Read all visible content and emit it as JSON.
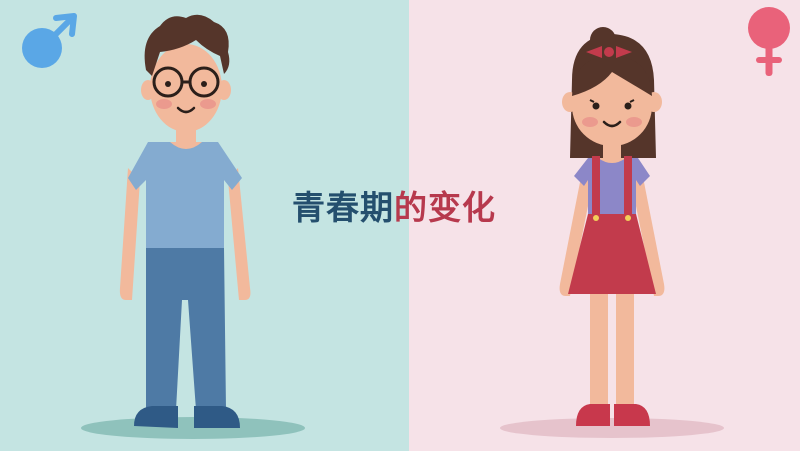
{
  "title": {
    "part1": "青春期",
    "part2": "的变化"
  },
  "colors": {
    "left_background": "#c4e4e2",
    "right_background": "#f6e2e8",
    "title_part1": "#244f6e",
    "title_part2": "#b7394d",
    "male_symbol": "#5aa7e6",
    "female_symbol": "#e9627a"
  },
  "icons": {
    "male": "male-symbol-icon",
    "female": "female-symbol-icon"
  }
}
